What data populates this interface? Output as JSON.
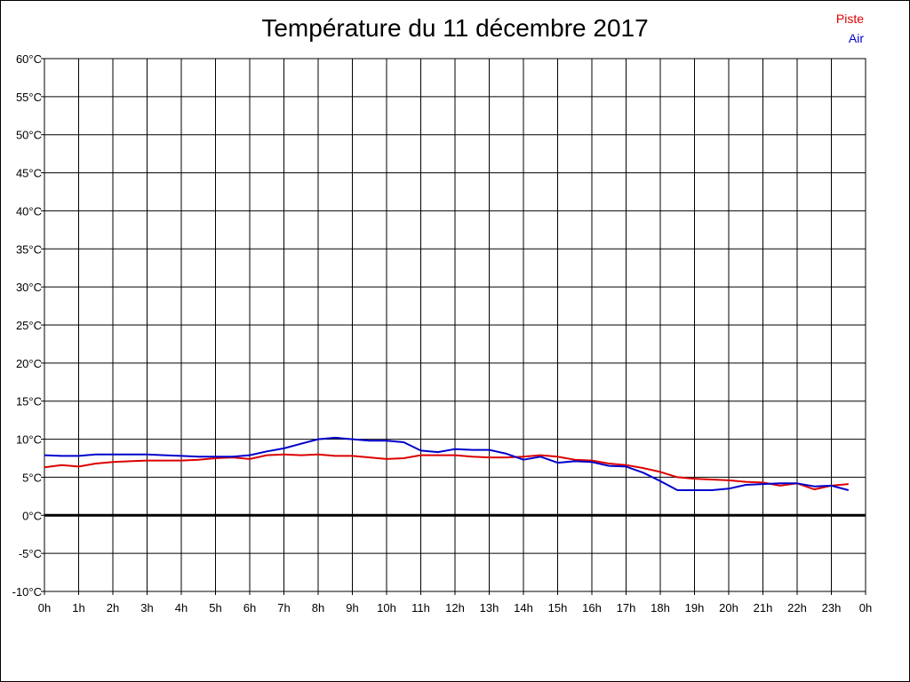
{
  "chart_data": {
    "type": "line",
    "title": "Température du 11 décembre 2017",
    "xlabel": "",
    "ylabel": "",
    "ylim": [
      -10,
      60
    ],
    "yticks": [
      "60°C",
      "55°C",
      "50°C",
      "45°C",
      "40°C",
      "35°C",
      "30°C",
      "25°C",
      "20°C",
      "15°C",
      "10°C",
      "5°C",
      "0°C",
      "-5°C",
      "-10°C"
    ],
    "xticks": [
      "0h",
      "1h",
      "2h",
      "3h",
      "4h",
      "5h",
      "6h",
      "7h",
      "8h",
      "9h",
      "10h",
      "11h",
      "12h",
      "13h",
      "14h",
      "15h",
      "16h",
      "17h",
      "18h",
      "19h",
      "20h",
      "21h",
      "22h",
      "23h",
      "0h"
    ],
    "grid": true,
    "legend_position": "top-right",
    "series": [
      {
        "name": "Piste",
        "color": "#dd0000",
        "x": [
          0,
          0.5,
          1,
          1.5,
          2,
          2.5,
          3,
          3.5,
          4,
          4.5,
          5,
          5.5,
          6,
          6.5,
          7,
          7.5,
          8,
          8.5,
          9,
          9.5,
          10,
          10.5,
          11,
          11.5,
          12,
          12.5,
          13,
          13.5,
          14,
          14.5,
          15,
          15.5,
          16,
          16.5,
          17,
          17.5,
          18,
          18.5,
          19,
          19.5,
          20,
          20.5,
          21,
          21.5,
          22,
          22.5,
          23,
          23.5
        ],
        "y": [
          6.3,
          6.6,
          6.4,
          6.8,
          7.0,
          7.1,
          7.2,
          7.2,
          7.2,
          7.3,
          7.5,
          7.6,
          7.4,
          7.9,
          8.0,
          7.9,
          8.0,
          7.8,
          7.8,
          7.6,
          7.4,
          7.5,
          7.9,
          7.9,
          7.9,
          7.7,
          7.6,
          7.6,
          7.7,
          7.9,
          7.7,
          7.3,
          7.2,
          6.8,
          6.6,
          6.2,
          5.7,
          5.0,
          4.8,
          4.7,
          4.6,
          4.4,
          4.3,
          3.9,
          4.2,
          3.4,
          3.9,
          4.1
        ]
      },
      {
        "name": "Air",
        "color": "#0000cc",
        "x": [
          0,
          0.5,
          1,
          1.5,
          2,
          2.5,
          3,
          3.5,
          4,
          4.5,
          5,
          5.5,
          6,
          6.5,
          7,
          7.5,
          8,
          8.5,
          9,
          9.5,
          10,
          10.5,
          11,
          11.5,
          12,
          12.5,
          13,
          13.5,
          14,
          14.5,
          15,
          15.5,
          16,
          16.5,
          17,
          17.5,
          18,
          18.5,
          19,
          19.5,
          20,
          20.5,
          21,
          21.5,
          22,
          22.5,
          23,
          23.5
        ],
        "y": [
          7.9,
          7.8,
          7.8,
          8.0,
          8.0,
          8.0,
          8.0,
          7.9,
          7.8,
          7.7,
          7.7,
          7.7,
          7.9,
          8.4,
          8.8,
          9.4,
          10.0,
          10.2,
          10.0,
          9.8,
          9.8,
          9.6,
          8.5,
          8.3,
          8.7,
          8.6,
          8.6,
          8.1,
          7.3,
          7.7,
          6.9,
          7.1,
          7.0,
          6.5,
          6.4,
          5.6,
          4.5,
          3.3,
          3.3,
          3.3,
          3.5,
          4.0,
          4.1,
          4.2,
          4.2,
          3.8,
          3.9,
          3.3
        ]
      }
    ]
  }
}
